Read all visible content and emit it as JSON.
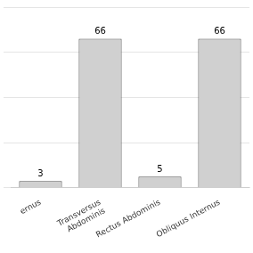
{
  "chart_data": {
    "type": "bar",
    "categories": [
      "ernus",
      "Transversus\nAbdominis",
      "Rectus Abdominis",
      "Obliquus Internus"
    ],
    "values": [
      3,
      66,
      5,
      66
    ],
    "color": "#d0d0d0",
    "ylim": [
      0,
      80
    ],
    "yticks": [
      0,
      20,
      40,
      60,
      80
    ],
    "grid": true,
    "data_labels": true,
    "tick_labels": "x"
  }
}
